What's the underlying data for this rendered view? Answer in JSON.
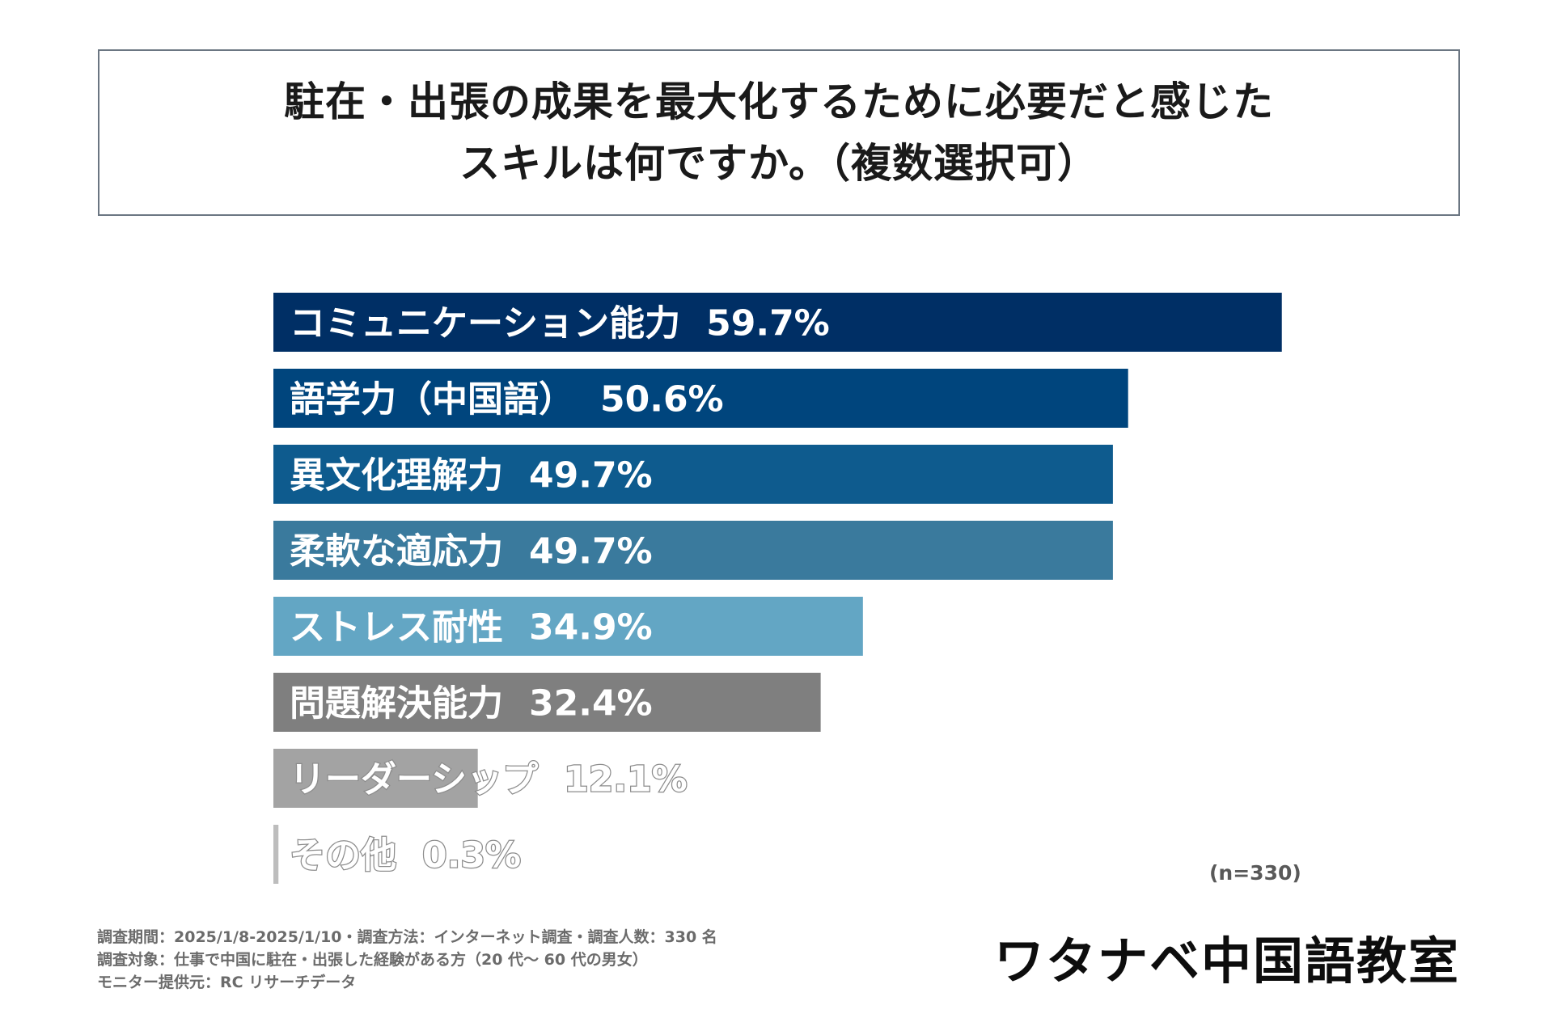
{
  "chart_data": {
    "type": "bar",
    "orientation": "horizontal",
    "title_lines": [
      "駐在・出張の成果を最大化するために必要だと感じた",
      "スキルは何ですか。（複数選択可）"
    ],
    "categories": [
      "コミュニケーション能力",
      "語学力（中国語）",
      "異文化理解力",
      "柔軟な適応力",
      "ストレス耐性",
      "問題解決能力",
      "リーダーシップ",
      "その他"
    ],
    "values": [
      59.7,
      50.6,
      49.7,
      49.7,
      34.9,
      32.4,
      12.1,
      0.3
    ],
    "value_labels": [
      "59.7%",
      "50.6%",
      "49.7%",
      "49.7%",
      "34.9%",
      "32.4%",
      "12.1%",
      "0.3%"
    ],
    "colors": [
      "#002f65",
      "#00457d",
      "#0e5b8e",
      "#3a7a9d",
      "#63a6c4",
      "#7f7f7f",
      "#a3a3a3",
      "#bdbdbd"
    ],
    "xlim": [
      0,
      60
    ],
    "grid": false,
    "legend": "none",
    "sample_size": "(n=330)"
  },
  "footnotes": [
    "調査期間：2025/1/8-2025/1/10・調査方法：インターネット調査・調査人数：330 名",
    "調査対象：仕事で中国に駐在・出張した経験がある方（20 代〜 60 代の男女）",
    "モニター提供元：RC リサーチデータ"
  ],
  "logo_text": "ワタナベ中国語教室"
}
